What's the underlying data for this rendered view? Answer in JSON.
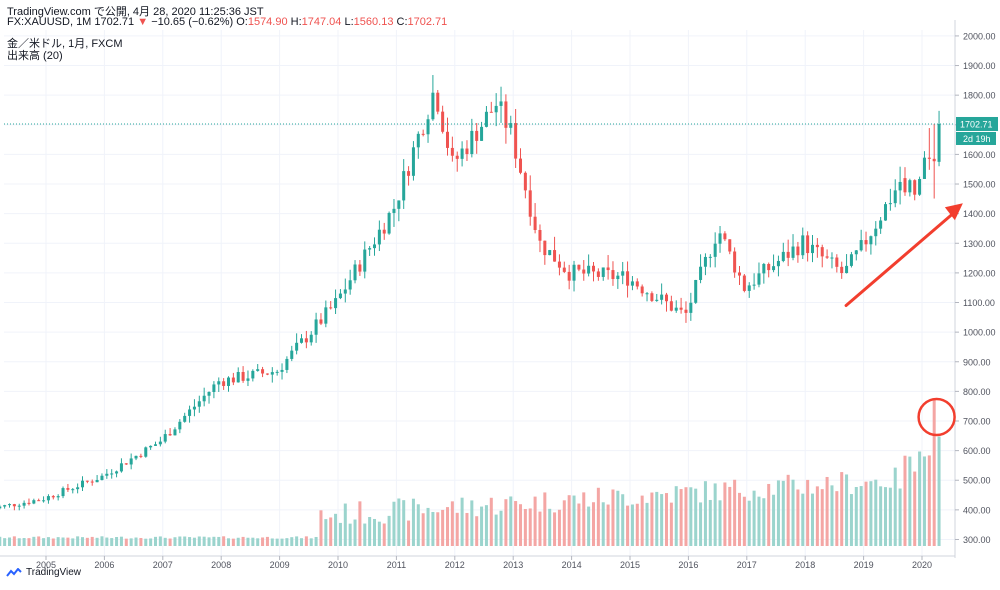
{
  "header": {
    "line1": "TradingView.com で公開, 4月 28, 2020 11:25:36 JST",
    "symbol": "FX:XAUUSD, 1M 1702.71",
    "change_arrow": "▼",
    "change": "−10.65 (−0.62%)",
    "o_label": "O:",
    "o_value": "1574.90",
    "h_label": "H:",
    "h_value": "1747.04",
    "l_label": "L:",
    "l_value": "1560.13",
    "c_label": "C:",
    "c_value": "1702.71"
  },
  "legend": {
    "series": "金／米ドル, 1月, FXCM",
    "volume": "出来高 (20)"
  },
  "footer": {
    "brand": "TradingView"
  },
  "colors": {
    "up": "#26a69a",
    "down": "#ef5350",
    "up_volume": "#9bd4cd",
    "down_volume": "#f4a6a4",
    "annotation": "#f23e2e",
    "last_price_line": "#26a69a"
  },
  "chart_data": {
    "type": "candlestick",
    "title": "金／米ドル, 1月, FXCM",
    "y_axis_ticks": [
      300,
      400,
      500,
      600,
      700,
      800,
      900,
      1000,
      1100,
      1200,
      1300,
      1400,
      1500,
      1600,
      1700,
      1800,
      1900,
      2000
    ],
    "y_axis_tick_labels": [
      "300.00",
      "400.00",
      "500.00",
      "600.00",
      "700.00",
      "800.00",
      "900.00",
      "1000.00",
      "1100.00",
      "1200.00",
      "1300.00",
      "1400.00",
      "1500.00",
      "1600.00",
      "1700.00",
      "1800.00",
      "1900.00",
      "2000.00"
    ],
    "ylim": [
      278,
      2020
    ],
    "x_axis_labels": [
      "2005",
      "2006",
      "2007",
      "2008",
      "2009",
      "2010",
      "2011",
      "2012",
      "2013",
      "2014",
      "2015",
      "2016",
      "2017",
      "2018",
      "2019",
      "2020"
    ],
    "x_start": 2004.0,
    "last_price_label": "1702.71",
    "countdown_label": "2d 19h",
    "annual_closes": {
      "2004": 438,
      "2005": 513,
      "2006": 632,
      "2007": 834,
      "2008": 870,
      "2009": 1097,
      "2010": 1421,
      "2011": 1565,
      "2012": 1675,
      "2013": 1202,
      "2014": 1184,
      "2015": 1061,
      "2016": 1151,
      "2017": 1303,
      "2018": 1282,
      "2019": 1517
    },
    "recent_monthly_ohlc": [
      {
        "month": "2019-09",
        "o": 1520,
        "h": 1557,
        "l": 1460,
        "c": 1472
      },
      {
        "month": "2019-10",
        "o": 1472,
        "h": 1518,
        "l": 1458,
        "c": 1513
      },
      {
        "month": "2019-11",
        "o": 1513,
        "h": 1516,
        "l": 1445,
        "c": 1464
      },
      {
        "month": "2019-12",
        "o": 1464,
        "h": 1525,
        "l": 1460,
        "c": 1517
      },
      {
        "month": "2020-01",
        "o": 1517,
        "h": 1611,
        "l": 1517,
        "c": 1589
      },
      {
        "month": "2020-02",
        "o": 1589,
        "h": 1689,
        "l": 1548,
        "c": 1585
      },
      {
        "month": "2020-03",
        "o": 1585,
        "h": 1703,
        "l": 1451,
        "c": 1577
      },
      {
        "month": "2020-04",
        "o": 1574.9,
        "h": 1747.04,
        "l": 1560.13,
        "c": 1702.71
      }
    ],
    "volume_note": "volume pane at bottom; last month volume spike circled",
    "annotations": [
      "upward red arrow near 2018–2020",
      "red circle around 2020-03/04 volume spike"
    ]
  }
}
